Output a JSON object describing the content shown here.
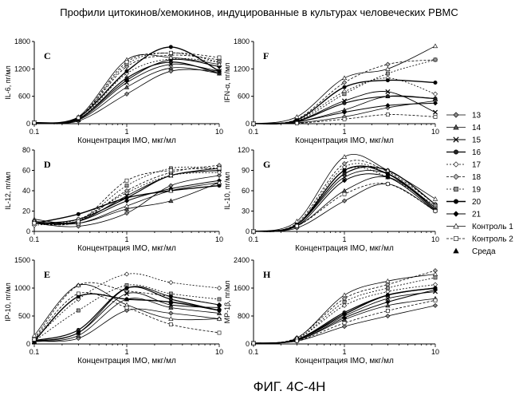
{
  "title": "Профили цитокинов/хемокинов, индуцированные в культурах человеческих PBMC",
  "caption": "ФИГ. 4С-4Н",
  "series_names": [
    "13",
    "14",
    "15",
    "16",
    "17",
    "18",
    "19",
    "20",
    "21",
    "Контроль 1",
    "Контроль 2",
    "Среда"
  ],
  "chart_data": [
    {
      "panel": "C",
      "type": "line",
      "xscale": "log",
      "xlabel": "Концентрация IMO, мкг/мл",
      "ylabel": "IL-6, пг/мл",
      "xlim": [
        0.1,
        10
      ],
      "ylim": [
        0,
        1800
      ],
      "xticks": [
        "0.1",
        "1",
        "10"
      ],
      "yticks": [
        "0",
        "600",
        "1200",
        "1800"
      ],
      "x": [
        0.1,
        0.3,
        1,
        3,
        10
      ],
      "series": [
        {
          "name": "13",
          "values": [
            20,
            60,
            650,
            1150,
            1150
          ]
        },
        {
          "name": "14",
          "values": [
            20,
            80,
            800,
            1220,
            1100
          ]
        },
        {
          "name": "15",
          "values": [
            20,
            90,
            900,
            1300,
            1150
          ]
        },
        {
          "name": "16",
          "values": [
            20,
            100,
            1000,
            1350,
            1100
          ]
        },
        {
          "name": "17",
          "values": [
            20,
            100,
            1100,
            1420,
            1350
          ]
        },
        {
          "name": "18",
          "values": [
            20,
            120,
            1250,
            1500,
            1400
          ]
        },
        {
          "name": "19",
          "values": [
            20,
            130,
            1300,
            1550,
            1350
          ]
        },
        {
          "name": "20",
          "values": [
            20,
            140,
            1150,
            1680,
            1150
          ]
        },
        {
          "name": "21",
          "values": [
            20,
            110,
            950,
            1400,
            1250
          ]
        },
        {
          "name": "Контроль 1",
          "values": [
            20,
            150,
            1400,
            1450,
            1300
          ]
        },
        {
          "name": "Контроль 2",
          "values": [
            20,
            130,
            1350,
            1550,
            1450
          ]
        }
      ]
    },
    {
      "panel": "F",
      "type": "line",
      "xscale": "log",
      "xlabel": "Концентрация IMO, мкг/мл",
      "ylabel": "IFN-α, пг/мл",
      "xlim": [
        0.1,
        10
      ],
      "ylim": [
        0,
        1800
      ],
      "xticks": [
        "0.1",
        "1",
        "10"
      ],
      "yticks": [
        "0",
        "600",
        "1200",
        "1800"
      ],
      "x": [
        0.1,
        0.3,
        1,
        3,
        10
      ],
      "series": [
        {
          "name": "13",
          "values": [
            0,
            20,
            150,
            350,
            500
          ]
        },
        {
          "name": "14",
          "values": [
            0,
            40,
            300,
            600,
            550
          ]
        },
        {
          "name": "15",
          "values": [
            0,
            60,
            500,
            700,
            250
          ]
        },
        {
          "name": "16",
          "values": [
            0,
            50,
            450,
            600,
            550
          ]
        },
        {
          "name": "17",
          "values": [
            0,
            80,
            700,
            1000,
            650
          ]
        },
        {
          "name": "18",
          "values": [
            0,
            100,
            900,
            1300,
            1400
          ]
        },
        {
          "name": "19",
          "values": [
            0,
            60,
            650,
            1100,
            1400
          ]
        },
        {
          "name": "20",
          "values": [
            0,
            80,
            800,
            950,
            900
          ]
        },
        {
          "name": "21",
          "values": [
            0,
            40,
            250,
            400,
            450
          ]
        },
        {
          "name": "Контроль 1",
          "values": [
            0,
            150,
            1000,
            1200,
            1700
          ]
        },
        {
          "name": "Контроль 2",
          "values": [
            0,
            10,
            100,
            200,
            150
          ]
        }
      ]
    },
    {
      "panel": "D",
      "type": "line",
      "xscale": "log",
      "xlabel": "Концентрация IMO, мкг/мл",
      "ylabel": "IL-12, пг/мл",
      "xlim": [
        0.1,
        10
      ],
      "ylim": [
        0,
        80
      ],
      "xticks": [
        "0.1",
        "1",
        "10"
      ],
      "yticks": [
        "0",
        "20",
        "40",
        "60",
        "80"
      ],
      "x": [
        0.1,
        0.3,
        1,
        3,
        10
      ],
      "series": [
        {
          "name": "13",
          "values": [
            8,
            5,
            18,
            45,
            55
          ]
        },
        {
          "name": "14",
          "values": [
            12,
            8,
            22,
            30,
            48
          ]
        },
        {
          "name": "15",
          "values": [
            8,
            10,
            35,
            55,
            62
          ]
        },
        {
          "name": "16",
          "values": [
            8,
            12,
            33,
            55,
            60
          ]
        },
        {
          "name": "17",
          "values": [
            6,
            12,
            38,
            55,
            58
          ]
        },
        {
          "name": "18",
          "values": [
            8,
            10,
            40,
            58,
            65
          ]
        },
        {
          "name": "19",
          "values": [
            8,
            10,
            45,
            62,
            62
          ]
        },
        {
          "name": "20",
          "values": [
            8,
            17,
            33,
            40,
            45
          ]
        },
        {
          "name": "21",
          "values": [
            8,
            10,
            30,
            42,
            50
          ]
        },
        {
          "name": "Контроль 1",
          "values": [
            10,
            8,
            25,
            40,
            48
          ]
        },
        {
          "name": "Контроль 2",
          "values": [
            8,
            10,
            50,
            60,
            62
          ]
        }
      ]
    },
    {
      "panel": "G",
      "type": "line",
      "xscale": "log",
      "xlabel": "Концентрация IMO, мкг/мл",
      "ylabel": "IL-10, пг/мл",
      "xlim": [
        0.1,
        10
      ],
      "ylim": [
        0,
        120
      ],
      "xticks": [
        "0.1",
        "1",
        "10"
      ],
      "yticks": [
        "0",
        "30",
        "60",
        "90",
        "120"
      ],
      "x": [
        0.1,
        0.3,
        1,
        3,
        10
      ],
      "series": [
        {
          "name": "13",
          "values": [
            0,
            5,
            45,
            70,
            30
          ]
        },
        {
          "name": "14",
          "values": [
            0,
            8,
            60,
            80,
            35
          ]
        },
        {
          "name": "15",
          "values": [
            0,
            10,
            80,
            85,
            35
          ]
        },
        {
          "name": "16",
          "values": [
            0,
            10,
            85,
            90,
            40
          ]
        },
        {
          "name": "17",
          "values": [
            0,
            10,
            95,
            85,
            35
          ]
        },
        {
          "name": "18",
          "values": [
            0,
            12,
            100,
            88,
            40
          ]
        },
        {
          "name": "19",
          "values": [
            0,
            10,
            90,
            80,
            38
          ]
        },
        {
          "name": "20",
          "values": [
            0,
            10,
            90,
            85,
            32
          ]
        },
        {
          "name": "21",
          "values": [
            0,
            8,
            75,
            80,
            30
          ]
        },
        {
          "name": "Контроль 1",
          "values": [
            0,
            15,
            110,
            90,
            48
          ]
        },
        {
          "name": "Контроль 2",
          "values": [
            0,
            8,
            55,
            70,
            30
          ]
        }
      ]
    },
    {
      "panel": "E",
      "type": "line",
      "xscale": "log",
      "xlabel": "Концентрация IMO, мкг/мл",
      "ylabel": "IP-10, пг/мл",
      "xlim": [
        0.1,
        10
      ],
      "ylim": [
        0,
        1500
      ],
      "xticks": [
        "0.1",
        "1",
        "10"
      ],
      "yticks": [
        "0",
        "500",
        "1000",
        "1500"
      ],
      "x": [
        0.1,
        0.3,
        1,
        3,
        10
      ],
      "series": [
        {
          "name": "13",
          "values": [
            50,
            100,
            600,
            550,
            450
          ]
        },
        {
          "name": "14",
          "values": [
            40,
            150,
            800,
            650,
            550
          ]
        },
        {
          "name": "15",
          "values": [
            50,
            200,
            900,
            700,
            650
          ]
        },
        {
          "name": "16",
          "values": [
            60,
            250,
            1000,
            800,
            600
          ]
        },
        {
          "name": "17",
          "values": [
            80,
            800,
            1250,
            1100,
            1000
          ]
        },
        {
          "name": "18",
          "values": [
            100,
            1050,
            950,
            850,
            700
          ]
        },
        {
          "name": "19",
          "values": [
            50,
            600,
            1050,
            900,
            800
          ]
        },
        {
          "name": "20",
          "values": [
            50,
            850,
            800,
            750,
            600
          ]
        },
        {
          "name": "21",
          "values": [
            50,
            200,
            1000,
            850,
            700
          ]
        },
        {
          "name": "Контроль 1",
          "values": [
            150,
            1050,
            700,
            450,
            450
          ]
        },
        {
          "name": "Контроль 2",
          "values": [
            80,
            900,
            650,
            350,
            200
          ]
        }
      ]
    },
    {
      "panel": "H",
      "type": "line",
      "xscale": "log",
      "xlabel": "Концентрация IMO, мкг/мл",
      "ylabel": "MP-1β, пг/мл",
      "xlim": [
        0.1,
        10
      ],
      "ylim": [
        0,
        2400
      ],
      "xticks": [
        "0.1",
        "1",
        "10"
      ],
      "yticks": [
        "0",
        "800",
        "1600",
        "2400"
      ],
      "x": [
        0.1,
        0.3,
        1,
        3,
        10
      ],
      "series": [
        {
          "name": "13",
          "values": [
            20,
            80,
            500,
            800,
            1100
          ]
        },
        {
          "name": "14",
          "values": [
            20,
            100,
            700,
            1100,
            1300
          ]
        },
        {
          "name": "15",
          "values": [
            20,
            120,
            800,
            1300,
            1500
          ]
        },
        {
          "name": "16",
          "values": [
            20,
            130,
            900,
            1400,
            1600
          ]
        },
        {
          "name": "17",
          "values": [
            20,
            150,
            1100,
            1500,
            1700
          ]
        },
        {
          "name": "18",
          "values": [
            20,
            180,
            1300,
            1700,
            2100
          ]
        },
        {
          "name": "19",
          "values": [
            20,
            150,
            1200,
            1600,
            1900
          ]
        },
        {
          "name": "20",
          "values": [
            20,
            120,
            850,
            1400,
            1600
          ]
        },
        {
          "name": "21",
          "values": [
            20,
            100,
            750,
            1200,
            1550
          ]
        },
        {
          "name": "Контроль 1",
          "values": [
            20,
            170,
            1400,
            1800,
            2000
          ]
        },
        {
          "name": "Контроль 2",
          "values": [
            20,
            90,
            600,
            950,
            1250
          ]
        }
      ]
    }
  ]
}
